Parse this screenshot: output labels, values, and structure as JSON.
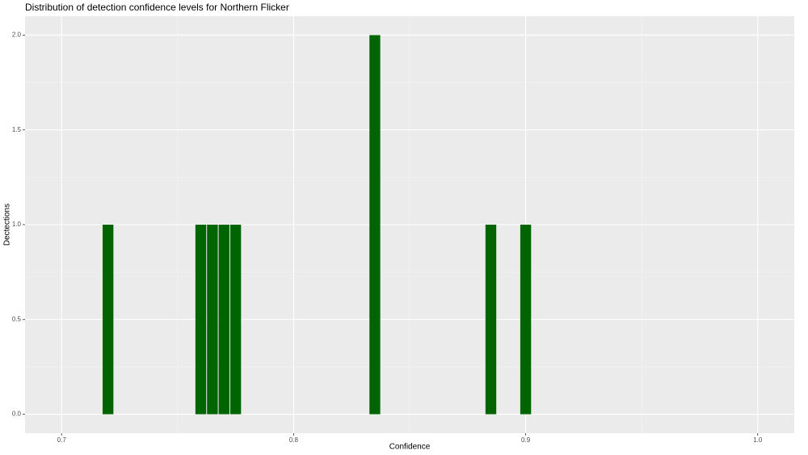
{
  "chart_data": {
    "type": "histogram",
    "title": "Distribution of detection confidence levels for Northern Flicker",
    "x_label": "Confidence",
    "y_label": "Dectections",
    "bins": [
      0.6975,
      0.7025,
      0.7075,
      0.7125,
      0.7175,
      0.7225,
      0.7275,
      0.7325,
      0.7375,
      0.7425,
      0.7475,
      0.7525,
      0.7575,
      0.7625,
      0.7675,
      0.7725,
      0.7775,
      0.7825,
      0.7875,
      0.7925,
      0.7975,
      0.8025,
      0.8075,
      0.8125,
      0.8175,
      0.8225,
      0.8275,
      0.8325,
      0.8375,
      0.8425,
      0.8475,
      0.8525,
      0.8575,
      0.8625,
      0.8675,
      0.8725,
      0.8775,
      0.8825,
      0.8875,
      0.8925,
      0.8975,
      0.9025,
      0.9075,
      0.9125,
      0.9175,
      0.9225,
      0.9275,
      0.9325,
      0.9375,
      0.9425,
      0.9475,
      0.9525,
      0.9575,
      0.9625,
      0.9675,
      0.9725,
      0.9775,
      0.9825,
      0.9875,
      0.9925,
      0.9975,
      1.0025
    ],
    "values": [
      0,
      0,
      0,
      0,
      1,
      0,
      0,
      0,
      0,
      0,
      0,
      0,
      1,
      1,
      1,
      1,
      0,
      0,
      0,
      0,
      0,
      0,
      0,
      0,
      0,
      0,
      0,
      2,
      0,
      0,
      0,
      0,
      0,
      0,
      0,
      0,
      0,
      1,
      0,
      0,
      1,
      0,
      0,
      0,
      0,
      0,
      0,
      0,
      0,
      0,
      0,
      0,
      0,
      0,
      0,
      0,
      0,
      0,
      0,
      0,
      0
    ],
    "color": "#006400",
    "xlim": [
      0.68425,
      1.01575
    ],
    "xticks": [
      0.7,
      0.8,
      0.9,
      {
        "value": 1,
        "label": "1.0"
      }
    ],
    "ylim": [
      -0.1,
      2.1
    ],
    "yticks": [
      {
        "value": 0,
        "label": "0.0"
      },
      0.5,
      {
        "value": 1,
        "label": "1.0"
      },
      1.5,
      {
        "value": 2,
        "label": "2.0"
      }
    ],
    "grid": true
  }
}
